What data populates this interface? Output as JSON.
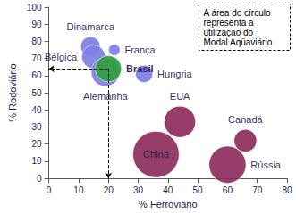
{
  "chart_data": {
    "type": "scatter",
    "x_label": "% Ferroviário",
    "y_label": "% Rodoviário",
    "annotation": "A área do círculo representa a utilização do Modal Aqüaviário",
    "xlim": [
      0,
      80
    ],
    "xticks": [
      0,
      10,
      20,
      30,
      40,
      50,
      60,
      70,
      80
    ],
    "ylim": [
      0,
      100
    ],
    "yticks": [
      0,
      10,
      20,
      30,
      40,
      50,
      60,
      70,
      80,
      90,
      100
    ],
    "grid": false,
    "data_labels": true,
    "names": [
      "Dinamarca",
      "França",
      "Bélgica",
      "Hungria",
      "Alemanha",
      "Brasil",
      "EUA",
      "China",
      "Canadá",
      "Rússia"
    ],
    "x": [
      14,
      22,
      15,
      32,
      19,
      20,
      44,
      36,
      66,
      60
    ],
    "y": [
      77,
      75,
      71,
      61,
      62,
      64,
      33,
      14,
      22,
      8
    ],
    "sizes": [
      9,
      3,
      13,
      7,
      19,
      16,
      23,
      50,
      12,
      32
    ],
    "colors": [
      "#7f7fe3",
      "#7f7fe3",
      "#7f7fe3",
      "#7f7fe3",
      "#7f7fe3",
      "#2e9e3e",
      "#8e2d5c",
      "#8e2d5c",
      "#8e2d5c",
      "#8e2d5c"
    ],
    "reference": {
      "x": 20,
      "y": 64
    }
  }
}
